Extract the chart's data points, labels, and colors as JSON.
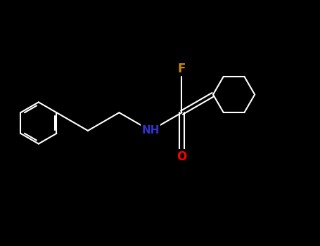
{
  "background_color": "#000000",
  "bond_color": "#ffffff",
  "nitrogen_color": "#3333cc",
  "oxygen_color": "#ff0000",
  "fluorine_color": "#cc8800",
  "label_NH": "NH",
  "label_O": "O",
  "label_F": "F",
  "figsize": [
    4.55,
    3.5
  ],
  "dpi": 100,
  "lw": 1.5,
  "font_size": 10
}
